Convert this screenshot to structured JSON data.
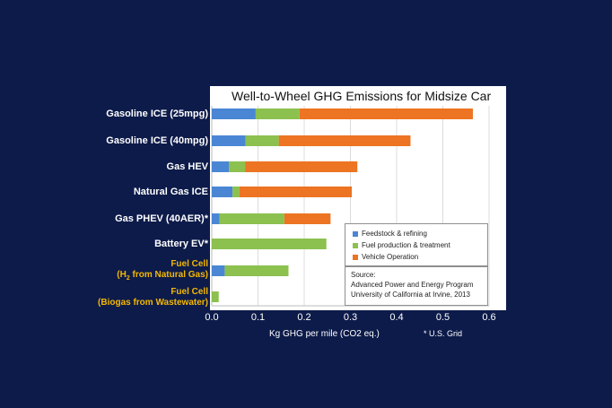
{
  "chart_data": {
    "type": "bar",
    "orientation": "horizontal",
    "stacked": true,
    "title": "Well-to-Wheel GHG Emissions for Midsize Car",
    "xlabel": "Kg GHG per mile (CO2 eq.)",
    "ylabel": "",
    "xlim": [
      0,
      0.6
    ],
    "xticks": [
      "0.0",
      "0.1",
      "0.2",
      "0.3",
      "0.4",
      "0.5",
      "0.6"
    ],
    "grid": "vertical",
    "legend_position": "right",
    "categories": [
      "Gasoline ICE (25mpg)",
      "Gasoline ICE (40mpg)",
      "Gas HEV",
      "Natural Gas ICE",
      "Gas PHEV (40AER)*",
      "Battery EV*",
      "Fuel Cell (H2 from Natural Gas)",
      "Fuel Cell (Biogas from Wastewater)"
    ],
    "series": [
      {
        "name": "Feedstock & refining",
        "color": "#4a86d4",
        "values": [
          0.095,
          0.073,
          0.037,
          0.045,
          0.017,
          0.0,
          0.028,
          0.0
        ]
      },
      {
        "name": "Fuel production & treatment",
        "color": "#8cc04f",
        "values": [
          0.095,
          0.072,
          0.035,
          0.015,
          0.14,
          0.248,
          0.138,
          0.015
        ]
      },
      {
        "name": "Vehicle Operation",
        "color": "#ec7422",
        "values": [
          0.375,
          0.285,
          0.243,
          0.243,
          0.1,
          0.0,
          0.0,
          0.0
        ]
      }
    ],
    "footnote": "* U.S. Grid"
  },
  "labels": {
    "cat_0": "Gasoline ICE (25mpg)",
    "cat_1": "Gasoline ICE (40mpg)",
    "cat_2": "Gas HEV",
    "cat_3": "Natural Gas ICE",
    "cat_4": "Gas PHEV (40AER)*",
    "cat_5": "Battery EV*",
    "fc1_line1": "Fuel Cell",
    "fc1_line2_a": "(H",
    "fc1_line2_sub": "2",
    "fc1_line2_b": " from Natural Gas)",
    "fc2_line1": "Fuel Cell",
    "fc2_line2": "(Biogas from Wastewater)"
  },
  "source": {
    "heading": "Source:",
    "line1": "Advanced Power and Energy Program",
    "line2": "University of California at Irvine, 2013"
  }
}
